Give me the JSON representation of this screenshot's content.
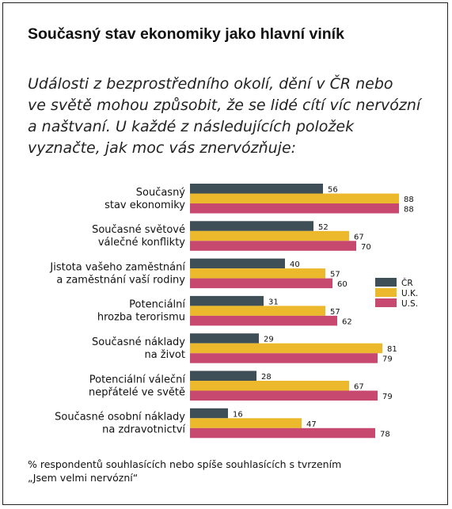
{
  "title": "Současný stav ekonomiky jako hlavní viník",
  "question_lines": [
    "Události z bezprostředního okolí, dění v ČR nebo",
    "ve světě mohou způsobit, že se lidé cítí víc nervózní",
    "a naštvaní. U každé z následujících položek",
    "vyznačte, jak moc vás znervózňuje:"
  ],
  "footnote_lines": [
    "% respondentů souhlasících nebo spíše souhlasících s tvrzením",
    "„Jsem velmi nervózní“"
  ],
  "chart_data": {
    "type": "bar",
    "orientation": "horizontal",
    "categories": [
      [
        "Současný",
        "stav ekonomiky"
      ],
      [
        "Současné světové",
        "válečné konflikty"
      ],
      [
        "Jistota vašeho zaměstnání",
        "a zaměstnání vaší rodiny"
      ],
      [
        "Potenciální",
        "hrozba terorismu"
      ],
      [
        "Současné náklady",
        "na život"
      ],
      [
        "Potenciální váleční",
        "nepřátelé ve světě"
      ],
      [
        "Současné osobní náklady",
        "na zdravotnictví"
      ]
    ],
    "series": [
      {
        "name": "ČR",
        "color": "#3f4f57",
        "values": [
          56,
          52,
          40,
          31,
          29,
          28,
          16
        ]
      },
      {
        "name": "U.K.",
        "color": "#ecb92c",
        "values": [
          88,
          67,
          57,
          57,
          81,
          67,
          47
        ]
      },
      {
        "name": "U.S.",
        "color": "#c8496f",
        "values": [
          88,
          70,
          60,
          62,
          79,
          79,
          78
        ]
      }
    ],
    "xlim": [
      0,
      100
    ],
    "legend_position": "right",
    "data_labels": true,
    "grid": false
  }
}
